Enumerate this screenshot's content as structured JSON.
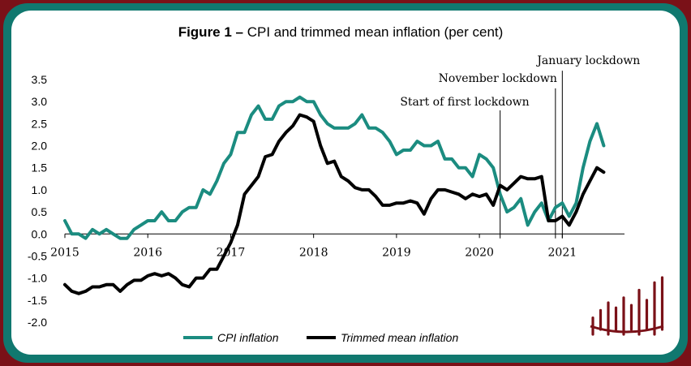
{
  "chart_data": {
    "type": "line",
    "title_bold": "Figure 1 –",
    "title_rest": " CPI and trimmed mean inflation (per cent)",
    "xlabel": "",
    "ylabel": "",
    "x_ticks": [
      "2015",
      "2016",
      "2017",
      "2018",
      "2019",
      "2020",
      "2021"
    ],
    "y_ticks": [
      "3.5",
      "3.0",
      "2.5",
      "2.0",
      "1.5",
      "1.0",
      "0.5",
      "0.0",
      "-0.5",
      "-1.0",
      "-1.5",
      "-2.0"
    ],
    "xlim": [
      2015.0,
      2021.75
    ],
    "ylim": [
      -2.0,
      3.5
    ],
    "grid": false,
    "legend_position": "bottom-center",
    "series": [
      {
        "name": "CPI inflation",
        "color": "#1b8c80",
        "x": [
          2015.0,
          2015.083,
          2015.167,
          2015.25,
          2015.333,
          2015.417,
          2015.5,
          2015.583,
          2015.667,
          2015.75,
          2015.833,
          2015.917,
          2016.0,
          2016.083,
          2016.167,
          2016.25,
          2016.333,
          2016.417,
          2016.5,
          2016.583,
          2016.667,
          2016.75,
          2016.833,
          2016.917,
          2017.0,
          2017.083,
          2017.167,
          2017.25,
          2017.333,
          2017.417,
          2017.5,
          2017.583,
          2017.667,
          2017.75,
          2017.833,
          2017.917,
          2018.0,
          2018.083,
          2018.167,
          2018.25,
          2018.333,
          2018.417,
          2018.5,
          2018.583,
          2018.667,
          2018.75,
          2018.833,
          2018.917,
          2019.0,
          2019.083,
          2019.167,
          2019.25,
          2019.333,
          2019.417,
          2019.5,
          2019.583,
          2019.667,
          2019.75,
          2019.833,
          2019.917,
          2020.0,
          2020.083,
          2020.167,
          2020.25,
          2020.333,
          2020.417,
          2020.5,
          2020.583,
          2020.667,
          2020.75,
          2020.833,
          2020.917,
          2021.0,
          2021.083,
          2021.167,
          2021.25,
          2021.333,
          2021.417,
          2021.5
        ],
        "values": [
          0.3,
          0.0,
          0.0,
          -0.1,
          0.1,
          0.0,
          0.1,
          0.0,
          -0.1,
          -0.1,
          0.1,
          0.2,
          0.3,
          0.3,
          0.5,
          0.3,
          0.3,
          0.5,
          0.6,
          0.6,
          1.0,
          0.9,
          1.2,
          1.6,
          1.8,
          2.3,
          2.3,
          2.7,
          2.9,
          2.6,
          2.6,
          2.9,
          3.0,
          3.0,
          3.1,
          3.0,
          3.0,
          2.7,
          2.5,
          2.4,
          2.4,
          2.4,
          2.5,
          2.7,
          2.4,
          2.4,
          2.3,
          2.1,
          1.8,
          1.9,
          1.9,
          2.1,
          2.0,
          2.0,
          2.1,
          1.7,
          1.7,
          1.5,
          1.5,
          1.3,
          1.8,
          1.7,
          1.5,
          0.9,
          0.5,
          0.6,
          0.8,
          0.2,
          0.5,
          0.7,
          0.3,
          0.6,
          0.7,
          0.4,
          0.7,
          1.5,
          2.1,
          2.5,
          2.0
        ]
      },
      {
        "name": "Trimmed mean inflation",
        "color": "#000000",
        "x": [
          2015.0,
          2015.083,
          2015.167,
          2015.25,
          2015.333,
          2015.417,
          2015.5,
          2015.583,
          2015.667,
          2015.75,
          2015.833,
          2015.917,
          2016.0,
          2016.083,
          2016.167,
          2016.25,
          2016.333,
          2016.417,
          2016.5,
          2016.583,
          2016.667,
          2016.75,
          2016.833,
          2016.917,
          2017.0,
          2017.083,
          2017.167,
          2017.25,
          2017.333,
          2017.417,
          2017.5,
          2017.583,
          2017.667,
          2017.75,
          2017.833,
          2017.917,
          2018.0,
          2018.083,
          2018.167,
          2018.25,
          2018.333,
          2018.417,
          2018.5,
          2018.583,
          2018.667,
          2018.75,
          2018.833,
          2018.917,
          2019.0,
          2019.083,
          2019.167,
          2019.25,
          2019.333,
          2019.417,
          2019.5,
          2019.583,
          2019.667,
          2019.75,
          2019.833,
          2019.917,
          2020.0,
          2020.083,
          2020.167,
          2020.25,
          2020.333,
          2020.417,
          2020.5,
          2020.583,
          2020.667,
          2020.75,
          2020.833,
          2020.917,
          2021.0,
          2021.083,
          2021.167,
          2021.25,
          2021.333,
          2021.417,
          2021.5
        ],
        "values": [
          -1.15,
          -1.3,
          -1.35,
          -1.3,
          -1.2,
          -1.2,
          -1.15,
          -1.15,
          -1.3,
          -1.15,
          -1.05,
          -1.05,
          -0.95,
          -0.9,
          -0.95,
          -0.9,
          -1.0,
          -1.15,
          -1.2,
          -1.0,
          -1.0,
          -0.8,
          -0.8,
          -0.5,
          -0.2,
          0.2,
          0.9,
          1.1,
          1.3,
          1.75,
          1.8,
          2.1,
          2.3,
          2.45,
          2.7,
          2.65,
          2.55,
          2.0,
          1.6,
          1.65,
          1.3,
          1.2,
          1.05,
          1.0,
          1.0,
          0.85,
          0.65,
          0.65,
          0.7,
          0.7,
          0.75,
          0.7,
          0.45,
          0.8,
          1.0,
          1.0,
          0.95,
          0.9,
          0.8,
          0.9,
          0.85,
          0.9,
          0.65,
          1.1,
          1.0,
          1.15,
          1.3,
          1.25,
          1.25,
          1.3,
          0.3,
          0.3,
          0.4,
          0.2,
          0.5,
          0.9,
          1.2,
          1.5,
          1.4
        ]
      }
    ],
    "annotations": [
      {
        "label": "Start of first lockdown",
        "x": 2020.25,
        "y_bottom": -0.1,
        "y_top": 2.8
      },
      {
        "label": "November lockdown",
        "x": 2020.917,
        "y_bottom": -0.1,
        "y_top": 3.3
      },
      {
        "label": "January lockdown",
        "x": 2021.0,
        "y_bottom": -0.1,
        "y_top": 3.7
      }
    ]
  },
  "logo": {
    "name": "bar-logo",
    "color": "#7a1118",
    "bars": [
      0.2,
      0.35,
      0.5,
      0.4,
      0.6,
      0.45,
      0.75,
      0.55,
      0.9,
      1.0
    ]
  }
}
